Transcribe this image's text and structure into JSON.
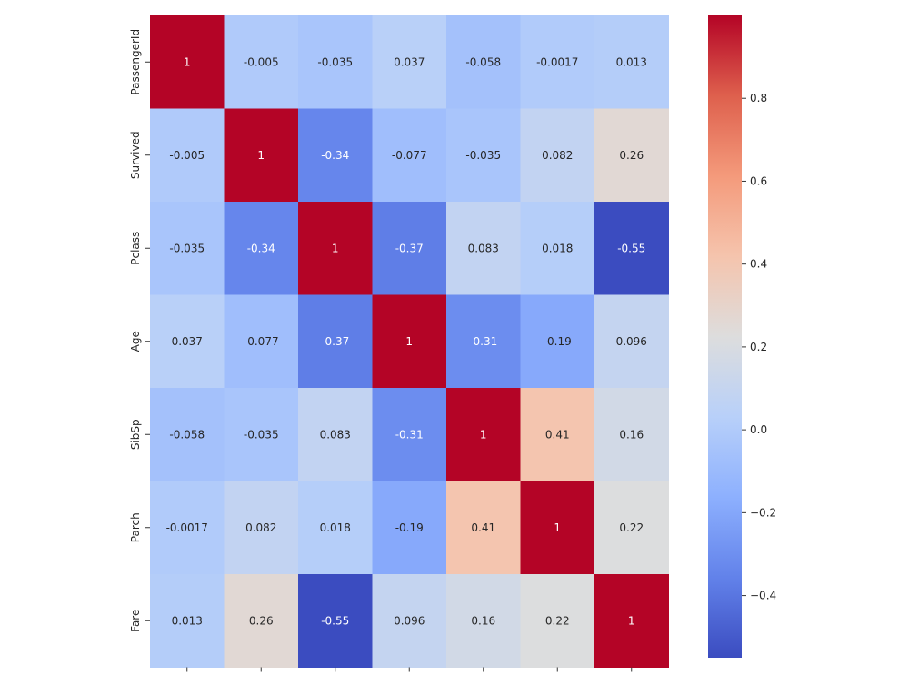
{
  "chart_data": {
    "type": "heatmap",
    "colormap": "coolwarm",
    "row_labels": [
      "PassengerId",
      "Survived",
      "Pclass",
      "Age",
      "SibSp",
      "Parch",
      "Fare"
    ],
    "col_labels": [
      "",
      "",
      "",
      "",
      "",
      "",
      ""
    ],
    "values": [
      [
        1,
        -0.005,
        -0.035,
        0.037,
        -0.058,
        -0.0017,
        0.013
      ],
      [
        -0.005,
        1,
        -0.34,
        -0.077,
        -0.035,
        0.082,
        0.26
      ],
      [
        -0.035,
        -0.34,
        1,
        -0.37,
        0.083,
        0.018,
        -0.55
      ],
      [
        0.037,
        -0.077,
        -0.37,
        1,
        -0.31,
        -0.19,
        0.096
      ],
      [
        -0.058,
        -0.035,
        0.083,
        -0.31,
        1,
        0.41,
        0.16
      ],
      [
        -0.0017,
        0.082,
        0.018,
        -0.19,
        0.41,
        1,
        0.22
      ],
      [
        0.013,
        0.26,
        -0.55,
        0.096,
        0.16,
        0.22,
        1
      ]
    ],
    "vmin": -0.55,
    "vmax": 1,
    "colorbar": {
      "ticks": [
        0.8,
        0.6,
        0.4,
        0.2,
        0.0,
        -0.2,
        -0.4
      ],
      "tick_labels": [
        "0.8",
        "0.6",
        "0.4",
        "0.2",
        "0.0",
        "−0.2",
        "−0.4"
      ]
    },
    "title": "",
    "xlabel": "",
    "ylabel": ""
  }
}
